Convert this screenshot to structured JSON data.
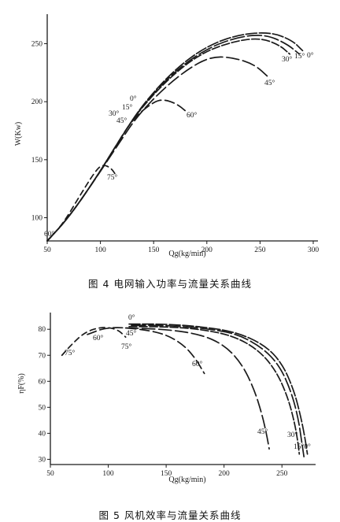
{
  "captions": {
    "fig4": "图 4   电网输入功率与流量关系曲线",
    "fig5": "图 5   风机效率与流量关系曲线"
  },
  "colors": {
    "ink": "#1a1a1a"
  },
  "chart_data": [
    {
      "type": "line",
      "title": "",
      "xlabel": "Qg(kg/min)",
      "ylabel": "W(Kw)",
      "xlim": [
        50,
        300
      ],
      "ylim": [
        80,
        270
      ],
      "xticks": [
        50,
        100,
        150,
        200,
        250,
        300
      ],
      "yticks": [
        100,
        150,
        200,
        250
      ],
      "series": [
        {
          "name": "0°",
          "points": [
            [
              50,
              80
            ],
            [
              70,
              100
            ],
            [
              95,
              133
            ],
            [
              120,
              170
            ],
            [
              140,
              198
            ],
            [
              170,
              228
            ],
            [
              200,
              248
            ],
            [
              230,
              258
            ],
            [
              260,
              260
            ],
            [
              280,
              253
            ],
            [
              290,
              244
            ]
          ]
        },
        {
          "name": "15°",
          "points": [
            [
              50,
              80
            ],
            [
              70,
              100
            ],
            [
              95,
              133
            ],
            [
              120,
              170
            ],
            [
              138,
              195
            ],
            [
              168,
              225
            ],
            [
              200,
              246
            ],
            [
              230,
              256
            ],
            [
              255,
              258
            ],
            [
              275,
              250
            ],
            [
              287,
              241
            ]
          ]
        },
        {
          "name": "30°",
          "points": [
            [
              50,
              80
            ],
            [
              70,
              100
            ],
            [
              95,
              133
            ],
            [
              120,
              170
            ],
            [
              135,
              191
            ],
            [
              165,
              221
            ],
            [
              195,
              242
            ],
            [
              225,
              252
            ],
            [
              250,
              255
            ],
            [
              268,
              249
            ],
            [
              278,
              241
            ]
          ]
        },
        {
          "name": "45°",
          "points": [
            [
              50,
              80
            ],
            [
              70,
              100
            ],
            [
              95,
              133
            ],
            [
              118,
              165
            ],
            [
              135,
              188
            ],
            [
              160,
              212
            ],
            [
              185,
              230
            ],
            [
              205,
              239
            ],
            [
              225,
              238
            ],
            [
              245,
              232
            ],
            [
              258,
              221
            ]
          ]
        },
        {
          "name": "60°",
          "points": [
            [
              50,
              80
            ],
            [
              70,
              100
            ],
            [
              95,
              133
            ],
            [
              110,
              155
            ],
            [
              130,
              185
            ],
            [
              150,
              200
            ],
            [
              160,
              202
            ],
            [
              172,
              198
            ],
            [
              180,
              192
            ]
          ]
        },
        {
          "name": "75°",
          "points": [
            [
              50,
              80
            ],
            [
              65,
              95
            ],
            [
              80,
              118
            ],
            [
              95,
              140
            ],
            [
              102,
              146
            ],
            [
              110,
              143
            ],
            [
              115,
              136
            ]
          ]
        }
      ],
      "annotations": [
        "0°",
        "15°",
        "30°",
        "45°",
        "60°",
        "75°",
        "30°",
        "15°",
        "0°",
        "45°",
        "60°",
        "75°",
        "75°"
      ]
    },
    {
      "type": "line",
      "title": "",
      "xlabel": "Qg(kg/min)",
      "ylabel": "ηF(%)",
      "xlim": [
        50,
        275
      ],
      "ylim": [
        28,
        84
      ],
      "xticks": [
        50,
        100,
        150,
        200,
        250
      ],
      "yticks": [
        30,
        40,
        50,
        60,
        70,
        80
      ],
      "series": [
        {
          "name": "0°",
          "points": [
            [
              118,
              82
            ],
            [
              150,
              82
            ],
            [
              180,
              81
            ],
            [
              210,
              79
            ],
            [
              235,
              74
            ],
            [
              250,
              67
            ],
            [
              260,
              57
            ],
            [
              266,
              47
            ],
            [
              270,
              38
            ],
            [
              272,
              32
            ]
          ]
        },
        {
          "name": "15°",
          "points": [
            [
              120,
              81.5
            ],
            [
              150,
              81.5
            ],
            [
              180,
              80.5
            ],
            [
              210,
              78.5
            ],
            [
              233,
              73
            ],
            [
              248,
              66
            ],
            [
              258,
              56
            ],
            [
              264,
              46
            ],
            [
              267,
              37
            ],
            [
              269,
              31
            ]
          ]
        },
        {
          "name": "30°",
          "points": [
            [
              118,
              81
            ],
            [
              150,
              81
            ],
            [
              180,
              80
            ],
            [
              208,
              77.5
            ],
            [
              230,
              72
            ],
            [
              245,
              64
            ],
            [
              255,
              54
            ],
            [
              261,
              44
            ],
            [
              264,
              36
            ],
            [
              265,
              32
            ]
          ]
        },
        {
          "name": "45°",
          "points": [
            [
              115,
              80.5
            ],
            [
              150,
              80
            ],
            [
              180,
              78
            ],
            [
              200,
              74
            ],
            [
              215,
              67
            ],
            [
              226,
              57
            ],
            [
              233,
              47
            ],
            [
              237,
              39
            ],
            [
              239,
              34
            ]
          ]
        },
        {
          "name": "60°",
          "points": [
            [
              82,
              78
            ],
            [
              100,
              81
            ],
            [
              130,
              80
            ],
            [
              150,
              78
            ],
            [
              165,
              74
            ],
            [
              175,
              69
            ],
            [
              183,
              63
            ]
          ]
        },
        {
          "name": "75°",
          "points": [
            [
              60,
              70
            ],
            [
              68,
              74
            ],
            [
              80,
              79
            ],
            [
              95,
              81
            ],
            [
              108,
              80
            ],
            [
              115,
              77
            ]
          ]
        }
      ],
      "annotations": [
        "0°",
        "45°",
        "75°",
        "60°",
        "75°",
        "60°",
        "45°",
        "30°",
        "15°0°"
      ]
    }
  ]
}
